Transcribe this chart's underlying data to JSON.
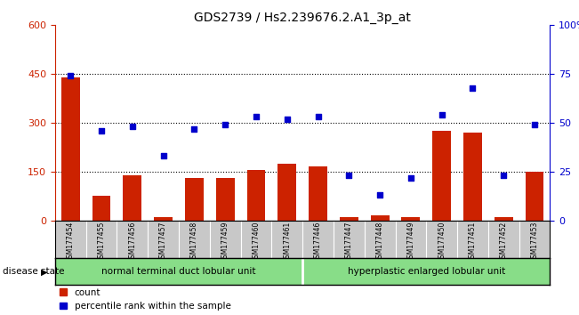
{
  "title": "GDS2739 / Hs2.239676.2.A1_3p_at",
  "samples": [
    "GSM177454",
    "GSM177455",
    "GSM177456",
    "GSM177457",
    "GSM177458",
    "GSM177459",
    "GSM177460",
    "GSM177461",
    "GSM177446",
    "GSM177447",
    "GSM177448",
    "GSM177449",
    "GSM177450",
    "GSM177451",
    "GSM177452",
    "GSM177453"
  ],
  "counts": [
    440,
    75,
    140,
    10,
    130,
    130,
    155,
    175,
    165,
    10,
    15,
    10,
    275,
    270,
    10,
    150
  ],
  "percentiles": [
    74,
    46,
    48,
    33,
    47,
    49,
    53,
    52,
    53,
    23,
    13,
    22,
    54,
    68,
    23,
    49
  ],
  "group1_label": "normal terminal duct lobular unit",
  "group2_label": "hyperplastic enlarged lobular unit",
  "group1_count": 8,
  "group2_count": 8,
  "bar_color": "#cc2200",
  "dot_color": "#0000cc",
  "bar_ylim": [
    0,
    600
  ],
  "bar_yticks": [
    0,
    150,
    300,
    450,
    600
  ],
  "pct_yticks": [
    0,
    25,
    50,
    75,
    100
  ],
  "bg_color": "#ffffff",
  "group_bg": "#88dd88",
  "tick_area_color": "#c8c8c8",
  "disease_state_label": "disease state",
  "legend_count_label": "count",
  "legend_pct_label": "percentile rank within the sample"
}
